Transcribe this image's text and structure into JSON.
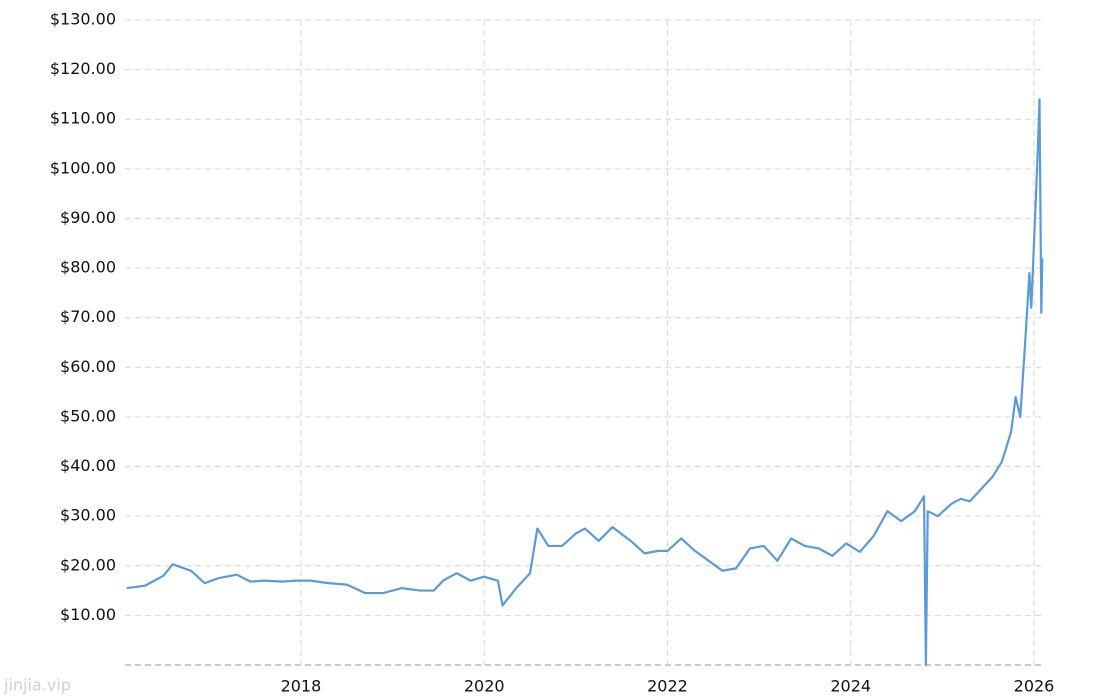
{
  "chart_data": {
    "type": "line",
    "watermark": "jinjia.vip",
    "x": [
      2016.1,
      2016.3,
      2016.5,
      2016.6,
      2016.8,
      2016.95,
      2017.1,
      2017.3,
      2017.45,
      2017.6,
      2017.8,
      2017.95,
      2018.1,
      2018.3,
      2018.5,
      2018.7,
      2018.9,
      2019.1,
      2019.3,
      2019.45,
      2019.55,
      2019.7,
      2019.85,
      2020.0,
      2020.15,
      2020.2,
      2020.35,
      2020.5,
      2020.58,
      2020.7,
      2020.85,
      2021.0,
      2021.1,
      2021.25,
      2021.4,
      2021.6,
      2021.75,
      2021.9,
      2022.0,
      2022.15,
      2022.3,
      2022.45,
      2022.6,
      2022.75,
      2022.9,
      2023.05,
      2023.2,
      2023.35,
      2023.5,
      2023.65,
      2023.8,
      2023.95,
      2024.1,
      2024.25,
      2024.4,
      2024.55,
      2024.7,
      2024.8,
      2024.82,
      2024.84,
      2024.95,
      2025.1,
      2025.2,
      2025.3,
      2025.45,
      2025.55,
      2025.65,
      2025.75,
      2025.8,
      2025.85,
      2025.9,
      2025.95,
      2025.97,
      2026.0,
      2026.02,
      2026.04,
      2026.06,
      2026.08,
      2026.09
    ],
    "series": [
      {
        "color": "#5b9bd5",
        "values": [
          15.5,
          16,
          18,
          20.3,
          19,
          16.5,
          17.5,
          18.2,
          16.8,
          17,
          16.8,
          17,
          17,
          16.5,
          16.2,
          14.5,
          14.5,
          15.5,
          15,
          15,
          17,
          18.5,
          17,
          17.8,
          17,
          12,
          15.5,
          18.5,
          27.5,
          24,
          24,
          26.5,
          27.5,
          25,
          27.8,
          25,
          22.5,
          23,
          23,
          25.5,
          23,
          21,
          19,
          19.5,
          23.5,
          24,
          21,
          25.5,
          24,
          23.5,
          22,
          24.5,
          22.8,
          26,
          31,
          29,
          31,
          34,
          0,
          31,
          30,
          32.5,
          33.5,
          33,
          36,
          38,
          41,
          47,
          54,
          50,
          64,
          79,
          72,
          85,
          94,
          103,
          114,
          71,
          82
        ]
      }
    ],
    "xlim": [
      2016.08,
      2026.12
    ],
    "xticks": [
      2018,
      2020,
      2022,
      2024,
      2026
    ],
    "ylim": [
      0,
      130
    ],
    "yticks": [
      {
        "value": 10,
        "label": "$10.00"
      },
      {
        "value": 20,
        "label": "$20.00"
      },
      {
        "value": 30,
        "label": "$30.00"
      },
      {
        "value": 40,
        "label": "$40.00"
      },
      {
        "value": 50,
        "label": "$50.00"
      },
      {
        "value": 60,
        "label": "$60.00"
      },
      {
        "value": 70,
        "label": "$70.00"
      },
      {
        "value": 80,
        "label": "$80.00"
      },
      {
        "value": 90,
        "label": "$90.00"
      },
      {
        "value": 100,
        "label": "$100.00"
      },
      {
        "value": 110,
        "label": "$110.00"
      },
      {
        "value": 120,
        "label": "$120.00"
      },
      {
        "value": 130,
        "label": "$130.00"
      }
    ],
    "grid": true
  }
}
